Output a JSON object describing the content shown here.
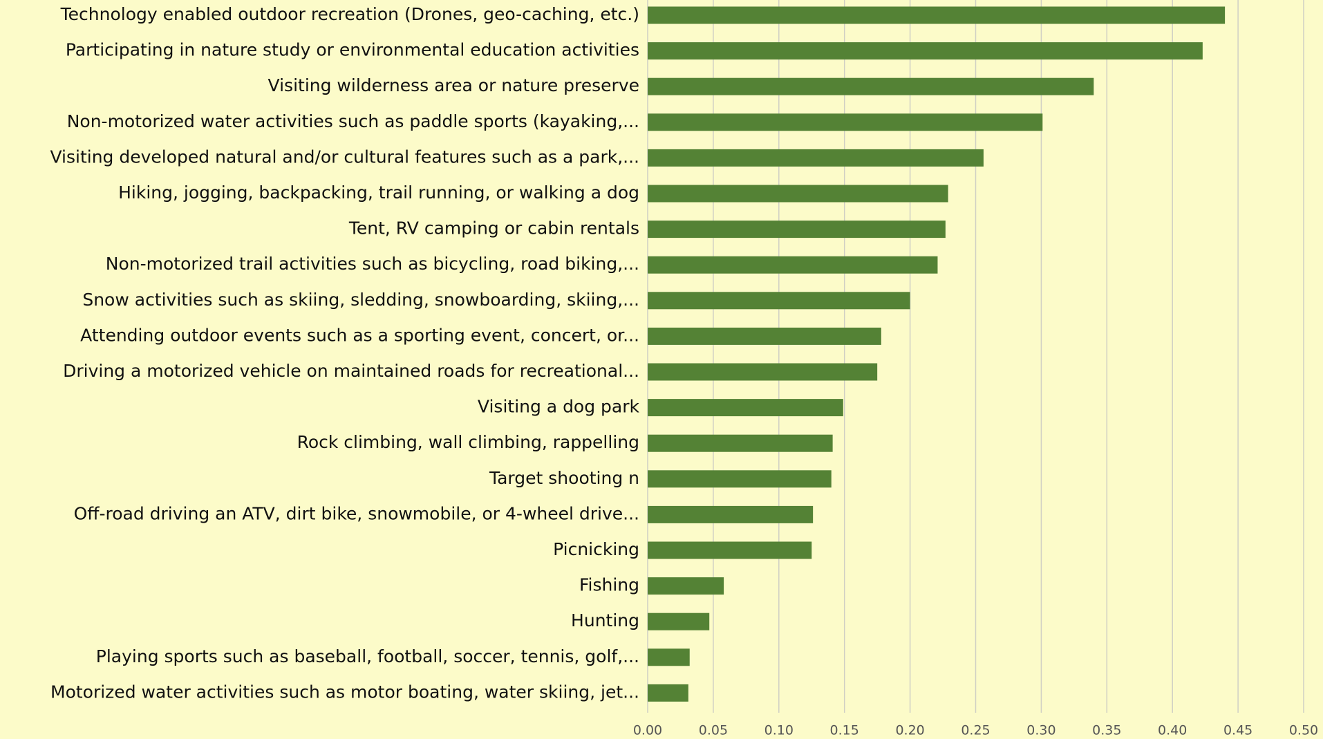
{
  "chart_data": {
    "type": "barh",
    "categories": [
      "Technology enabled outdoor recreation (Drones, geo-caching, etc.)",
      "Participating in nature study or environmental education activities",
      "Visiting wilderness area or nature preserve",
      "Non-motorized water activities such as paddle sports (kayaking,...",
      "Visiting developed natural and/or cultural features such as a park,...",
      "Hiking, jogging, backpacking, trail running, or walking a dog",
      "Tent, RV camping or cabin rentals",
      "Non-motorized trail activities such as bicycling, road biking,...",
      "Snow activities such as skiing, sledding, snowboarding, skiing,...",
      "Attending outdoor events such as a sporting event, concert, or...",
      "Driving a motorized vehicle on maintained roads for recreational...",
      "Visiting a dog park",
      "Rock climbing, wall climbing, rappelling",
      "Target shooting n",
      "Off-road driving an ATV, dirt bike, snowmobile, or 4-wheel drive...",
      "Picnicking",
      "Fishing",
      "Hunting",
      "Playing sports such as baseball, football, soccer, tennis, golf,...",
      "Motorized water activities such as motor boating, water skiing, jet..."
    ],
    "values": [
      0.44,
      0.423,
      0.34,
      0.301,
      0.256,
      0.229,
      0.227,
      0.221,
      0.2,
      0.178,
      0.175,
      0.149,
      0.141,
      0.14,
      0.126,
      0.125,
      0.058,
      0.047,
      0.032,
      0.031
    ],
    "color": "#548235",
    "xlim": [
      0,
      0.5
    ],
    "xticks": [
      {
        "value": 0,
        "label": "0.00"
      },
      {
        "value": 0.05,
        "label": "0.05"
      },
      {
        "value": 0.1,
        "label": "0.10"
      },
      {
        "value": 0.15,
        "label": "0.15"
      },
      {
        "value": 0.2,
        "label": "0.20"
      },
      {
        "value": 0.25,
        "label": "0.25"
      },
      {
        "value": 0.3,
        "label": "0.30"
      },
      {
        "value": 0.35,
        "label": "0.35"
      },
      {
        "value": 0.4,
        "label": "0.40"
      },
      {
        "value": 0.45,
        "label": "0.45"
      },
      {
        "value": 0.5,
        "label": "0.50"
      }
    ],
    "grid": true
  }
}
